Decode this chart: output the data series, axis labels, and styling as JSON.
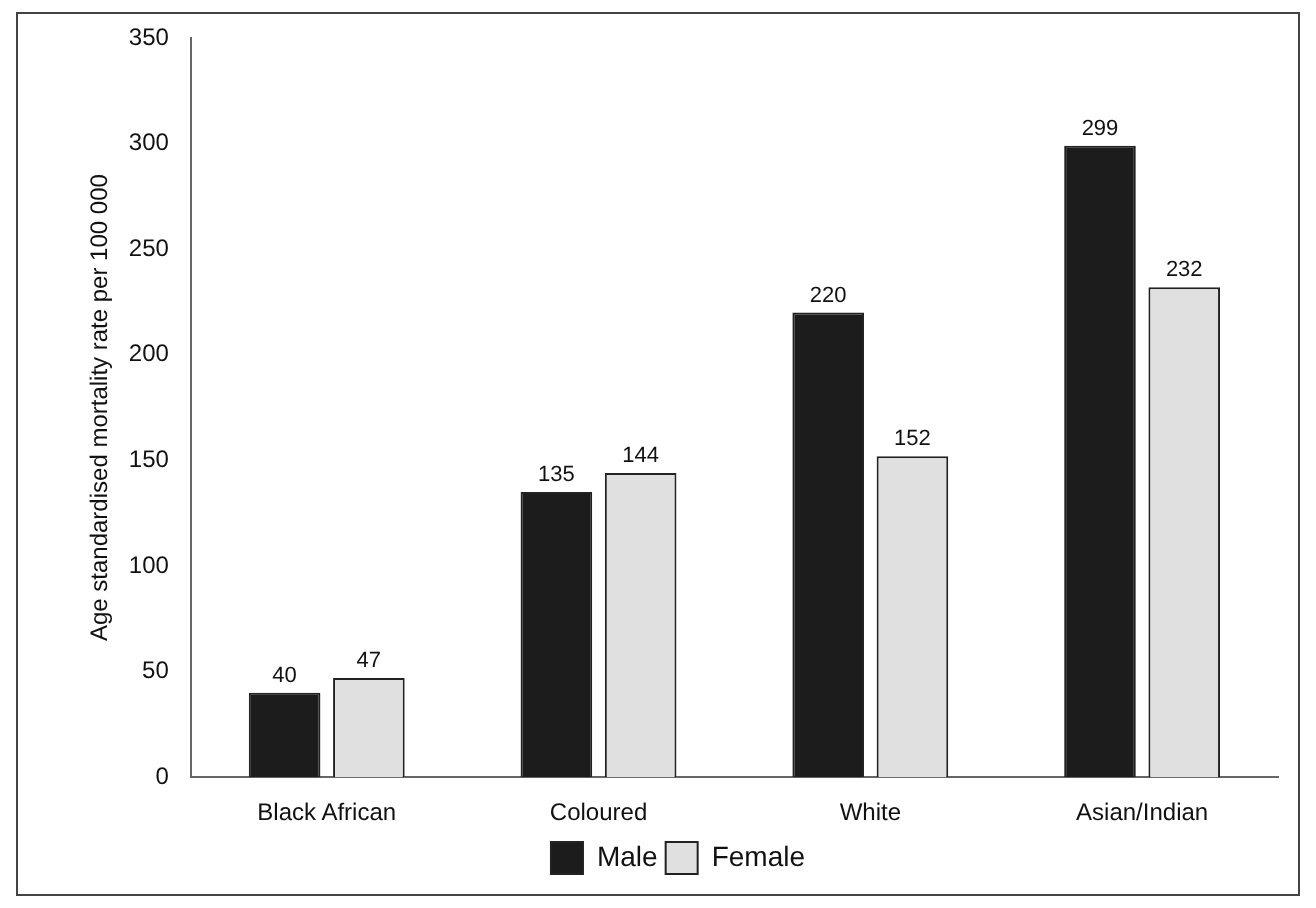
{
  "chart_data": {
    "type": "bar",
    "ylabel": "Age standardised mortality rate per 100 000",
    "categories": [
      "Black African",
      "Coloured",
      "White",
      "Asian/Indian"
    ],
    "series": [
      {
        "name": "Male",
        "color": "#1c1c1c",
        "values": [
          40,
          135,
          220,
          299
        ]
      },
      {
        "name": "Female",
        "color": "#e0e0e0",
        "values": [
          47,
          144,
          152,
          232
        ]
      }
    ],
    "ylim": [
      0,
      350
    ],
    "yticks": [
      0,
      50,
      100,
      150,
      200,
      250,
      300,
      350
    ],
    "grid": false,
    "legend": "bottom",
    "data_labels": true
  }
}
